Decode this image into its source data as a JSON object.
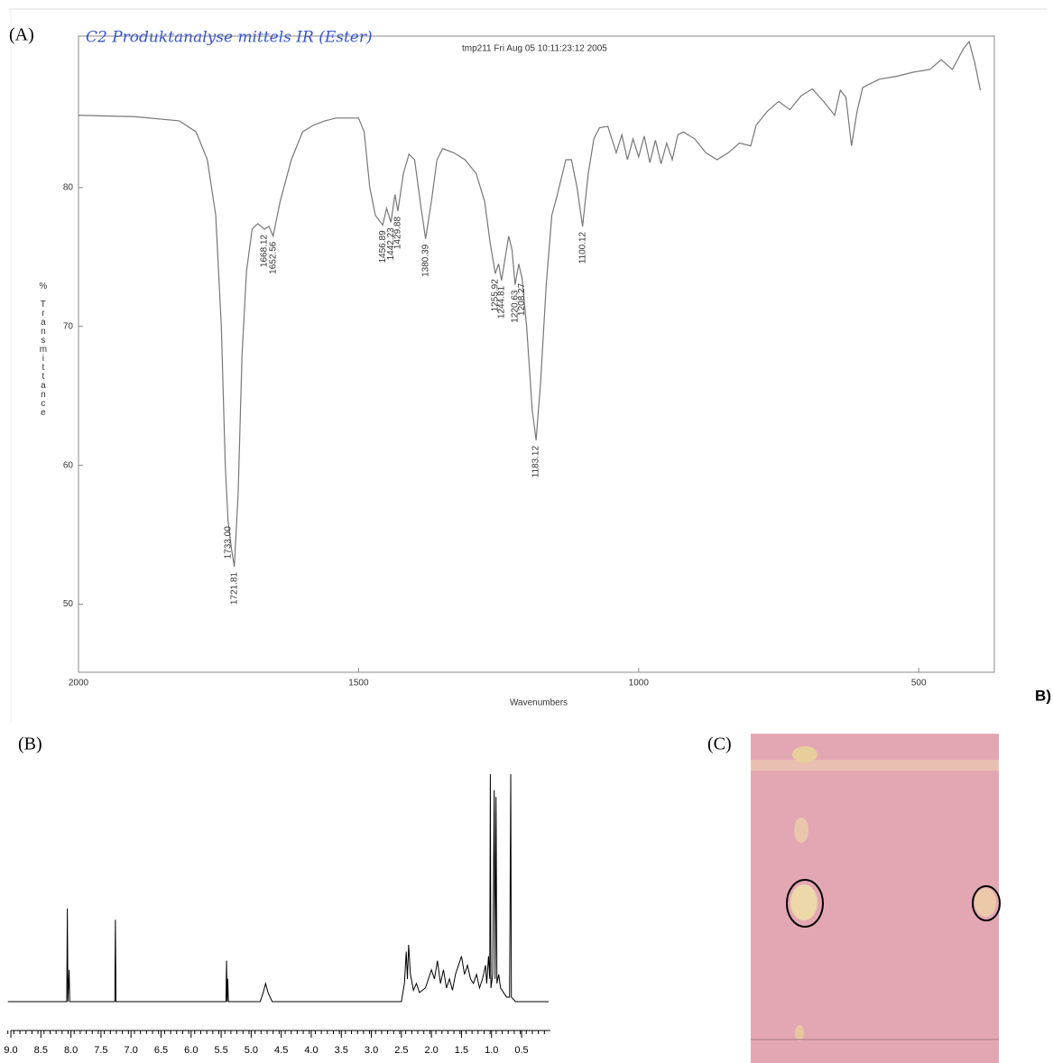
{
  "panel_labels": {
    "a": "(A)",
    "b": "(B)",
    "c": "(C)",
    "b2": "B)"
  },
  "chart_data": [
    {
      "type": "line",
      "title": "tmp211  Fri Aug 05 10:11:23:12 2005",
      "subtitle": "C2 Produktanalyse mittels IR (Ester)",
      "x_label": "Wavenumbers",
      "y_label": "% Transmittance",
      "color": "#777777",
      "xlim": [
        2000,
        365
      ],
      "ylim": [
        45.1,
        90.9
      ],
      "xticks": [
        2000,
        1500,
        1000,
        500
      ],
      "yticks": [
        50,
        60,
        70,
        80
      ],
      "x": [
        2000,
        1900,
        1820,
        1790,
        1770,
        1755,
        1745,
        1738,
        1733,
        1727,
        1721.81,
        1715,
        1708,
        1700,
        1690,
        1680,
        1668,
        1660,
        1652.56,
        1640,
        1620,
        1600,
        1580,
        1560,
        1540,
        1520,
        1500,
        1490,
        1480,
        1470,
        1456.89,
        1450,
        1442.23,
        1435,
        1429.88,
        1420,
        1410,
        1400,
        1390,
        1380.39,
        1370,
        1360,
        1350,
        1330,
        1310,
        1290,
        1275,
        1265,
        1255.92,
        1250,
        1244.81,
        1238,
        1232,
        1226,
        1220.63,
        1214,
        1208.27,
        1200,
        1190,
        1183.12,
        1175,
        1165,
        1155,
        1145,
        1130,
        1120,
        1110,
        1100.12,
        1090,
        1080,
        1070,
        1055,
        1040,
        1030,
        1020,
        1010,
        1000,
        990,
        980,
        970,
        960,
        950,
        940,
        930,
        920,
        900,
        880,
        860,
        840,
        820,
        800,
        790,
        770,
        750,
        730,
        710,
        690,
        670,
        650,
        640,
        630,
        620,
        610,
        600,
        570,
        540,
        510,
        480,
        460,
        440,
        420,
        410,
        400,
        390
      ],
      "values": [
        85.2,
        85.1,
        84.8,
        84,
        82,
        78,
        70,
        60,
        56,
        54,
        52.7,
        58,
        68,
        74,
        77,
        77.4,
        77,
        77.2,
        76.5,
        79,
        82,
        84,
        84.5,
        84.8,
        85,
        85,
        85,
        84,
        80,
        78,
        77.3,
        78.5,
        77.5,
        79.5,
        78.3,
        81,
        82.4,
        82,
        79,
        76.3,
        79,
        82,
        82.8,
        82.5,
        82,
        81,
        79,
        76,
        73.8,
        74.5,
        73.3,
        75,
        76.5,
        75.5,
        73,
        74.5,
        73.5,
        70,
        64,
        61.8,
        66,
        73,
        78,
        79.5,
        82,
        82,
        80,
        77.2,
        81,
        83.5,
        84.3,
        84.4,
        82.5,
        83.8,
        82,
        83.5,
        82.2,
        83.7,
        81.8,
        83.4,
        81.7,
        83.2,
        82,
        83.8,
        84,
        83.5,
        82.5,
        82,
        82.5,
        83.2,
        83,
        84.5,
        85.5,
        86.2,
        85.6,
        86.6,
        87.1,
        86.2,
        85.2,
        87,
        86.5,
        83,
        85.5,
        87.2,
        87.8,
        88,
        88.3,
        88.5,
        89.2,
        88.5,
        90,
        90.5,
        89,
        87
      ],
      "annotations": [
        {
          "value": 1733,
          "label": "1733.00"
        },
        {
          "value": 1721.81,
          "label": "1721.81"
        },
        {
          "value": 1668.12,
          "label": "1668.12"
        },
        {
          "value": 1652.56,
          "label": "1652.56"
        },
        {
          "value": 1456.89,
          "label": "1456.89"
        },
        {
          "value": 1442.23,
          "label": "1442.23"
        },
        {
          "value": 1429.88,
          "label": "1429.88"
        },
        {
          "value": 1380.39,
          "label": "1380.39"
        },
        {
          "value": 1255.92,
          "label": "1255.92"
        },
        {
          "value": 1244.81,
          "label": "1244.81"
        },
        {
          "value": 1220.63,
          "label": "1220.63"
        },
        {
          "value": 1208.27,
          "label": "1208.27"
        },
        {
          "value": 1183.12,
          "label": "1183.12"
        },
        {
          "value": 1100.12,
          "label": "1100.12"
        }
      ]
    },
    {
      "type": "line",
      "color": "#000000",
      "xlim": [
        9.05,
        0.02
      ],
      "ylim": [
        0,
        100
      ],
      "xticks": [
        {
          "value": 9,
          "label": "9.0"
        },
        8.5,
        {
          "value": 8,
          "label": "8.0"
        },
        7.5,
        {
          "value": 7,
          "label": "7.0"
        },
        6.5,
        {
          "value": 6,
          "label": "6.0"
        },
        5.5,
        {
          "value": 5,
          "label": "5.0"
        },
        4.5,
        {
          "value": 4,
          "label": "4.0"
        },
        3.5,
        {
          "value": 3,
          "label": "3.0"
        },
        2.5,
        {
          "value": 2,
          "label": "2.0"
        },
        1.5,
        {
          "value": 1,
          "label": "1.0"
        },
        0.5
      ],
      "x": [
        9.05,
        8.1,
        8.07,
        8.06,
        8.05,
        8.03,
        8.02,
        7.3,
        7.27,
        7.26,
        7.25,
        5.45,
        5.42,
        5.41,
        5.4,
        5.39,
        5.38,
        4.85,
        4.8,
        4.76,
        4.72,
        4.65,
        2.5,
        2.45,
        2.42,
        2.4,
        2.38,
        2.35,
        2.3,
        2.25,
        2.2,
        2.1,
        2.0,
        1.95,
        1.9,
        1.85,
        1.8,
        1.75,
        1.7,
        1.65,
        1.6,
        1.55,
        1.5,
        1.45,
        1.4,
        1.35,
        1.3,
        1.25,
        1.2,
        1.15,
        1.1,
        1.08,
        1.05,
        1.03,
        1.02,
        1.01,
        0.98,
        0.955,
        0.94,
        0.925,
        0.91,
        0.88,
        0.85,
        0.8,
        0.75,
        0.7,
        0.68,
        0.67,
        0.6,
        0.05
      ],
      "values": [
        0,
        0,
        0,
        41,
        0,
        14,
        0,
        0,
        0,
        36,
        0,
        0,
        0,
        18,
        0,
        10,
        0,
        0,
        4,
        8,
        4,
        0,
        0,
        8,
        22,
        10,
        25,
        12,
        5,
        8,
        4,
        6,
        14,
        10,
        18,
        8,
        14,
        6,
        10,
        5,
        12,
        16,
        20,
        12,
        16,
        10,
        8,
        12,
        6,
        10,
        16,
        8,
        20,
        10,
        100,
        6,
        12,
        93,
        10,
        90,
        8,
        12,
        6,
        4,
        2,
        2,
        100,
        2,
        0,
        0
      ]
    }
  ]
}
